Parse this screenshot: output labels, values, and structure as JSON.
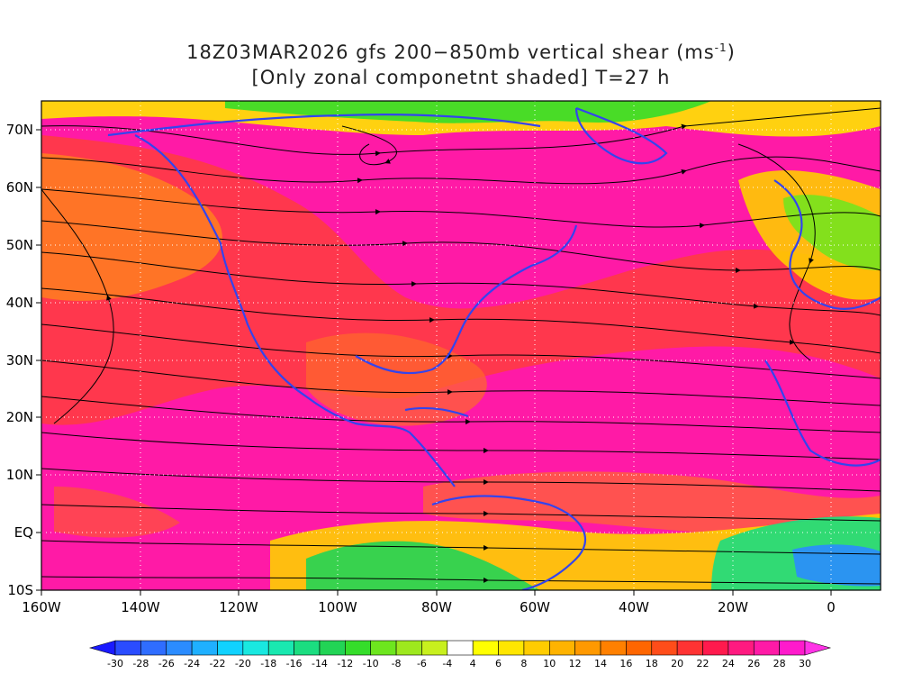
{
  "title": {
    "line1_prefix": "18Z03MAR2026 gfs 200−850mb vertical shear (ms",
    "line1_sup": "-1",
    "line1_suffix": ")",
    "line2": "[Only zonal componetnt shaded] T=27 h"
  },
  "map": {
    "lon_range": [
      -160,
      10
    ],
    "lat_range": [
      -10,
      75
    ],
    "x_ticks": [
      "160W",
      "140W",
      "120W",
      "100W",
      "80W",
      "60W",
      "40W",
      "20W",
      "0"
    ],
    "y_ticks": [
      "70N",
      "60N",
      "50N",
      "40N",
      "30N",
      "20N",
      "10N",
      "EQ",
      "10S"
    ],
    "grid": "dotted",
    "field": "zonal shear shaded, streamlines overlaid",
    "coastline_color": "#3344ee",
    "streamline_color": "#000000"
  },
  "colorbar": {
    "labels": [
      "-30",
      "-28",
      "-26",
      "-24",
      "-22",
      "-20",
      "-18",
      "-16",
      "-14",
      "-12",
      "-10",
      "-8",
      "-6",
      "-4",
      "4",
      "6",
      "8",
      "10",
      "12",
      "14",
      "16",
      "18",
      "20",
      "22",
      "24",
      "26",
      "28",
      "30"
    ],
    "colors": [
      "#1a1aff",
      "#2a4cff",
      "#2f6dff",
      "#2b8cff",
      "#1fb0ff",
      "#11d2ff",
      "#19e8e0",
      "#19e8b0",
      "#1bdd80",
      "#22d455",
      "#35dd2a",
      "#6de61e",
      "#9ee81e",
      "#c8f01e",
      "#ffffff",
      "#ffff00",
      "#ffe600",
      "#ffcc00",
      "#ffb300",
      "#ff9900",
      "#ff8000",
      "#ff6600",
      "#ff4d1a",
      "#ff3333",
      "#ff1a4d",
      "#ff1a80",
      "#ff1aa6",
      "#ff1acc",
      "#ff33e6"
    ]
  }
}
